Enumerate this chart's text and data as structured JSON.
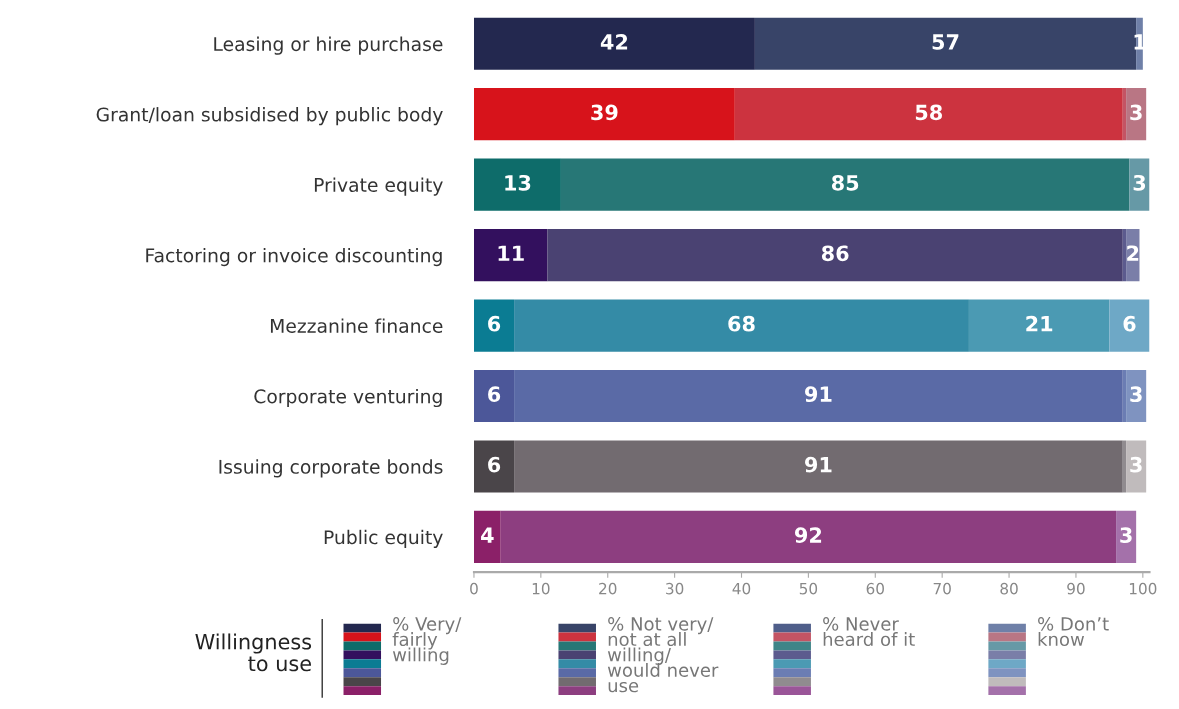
{
  "chart_data": {
    "type": "bar",
    "orientation": "horizontal",
    "stacked": true,
    "categories": [
      "Leasing or hire purchase",
      "Grant/loan subsidised by public body",
      "Private equity",
      "Factoring or invoice discounting",
      "Mezzanine finance",
      "Corporate venturing",
      "Issuing corporate bonds",
      "Public equity"
    ],
    "series": [
      {
        "name": "% Very/\nfairly\nwilling",
        "colors": [
          "#23284f",
          "#d7131b",
          "#0e6c6a",
          "#33105e",
          "#0b7c93",
          "#4c5799",
          "#4a4549",
          "#8b2068"
        ],
        "values": [
          42,
          39,
          13,
          11,
          6,
          6,
          6,
          4
        ],
        "value_labels": [
          "42",
          "39",
          "13",
          "11",
          "6",
          "6",
          "6",
          "4"
        ]
      },
      {
        "name": "% Not very/\nnot at all\nwilling/\nwould never\nuse",
        "colors": [
          "#384468",
          "#cc333f",
          "#277776",
          "#4a4272",
          "#348ba6",
          "#5a6aa6",
          "#726b70",
          "#8d3e80"
        ],
        "values": [
          57,
          58,
          85,
          86,
          68,
          91,
          91,
          92
        ],
        "value_labels": [
          "57",
          "58",
          "85",
          "86",
          "68",
          "91",
          "91",
          "92"
        ]
      },
      {
        "name": "% Never\nheard of it",
        "colors": [
          "#4f5e8a",
          "#c45464",
          "#3f8588",
          "#5c5b8e",
          "#4b9ab3",
          "#6b7db3",
          "#908b8f",
          "#9a5598"
        ],
        "values": [
          null,
          0.5,
          null,
          0.5,
          21,
          0.5,
          0.5,
          null
        ],
        "value_labels": [
          null,
          null,
          null,
          null,
          "21",
          null,
          null,
          null
        ]
      },
      {
        "name": "% Don’t\nknow",
        "colors": [
          "#6f80a8",
          "#b97684",
          "#6699a6",
          "#7a7ea8",
          "#6ea8c6",
          "#7f93c0",
          "#c0bbbc",
          "#a471aa"
        ],
        "values": [
          1,
          3,
          3,
          2,
          6,
          3,
          3,
          3
        ],
        "value_labels": [
          "1",
          "3",
          "3",
          "2",
          "6",
          "3",
          "3",
          "3"
        ]
      }
    ],
    "xlim": [
      0,
      101
    ],
    "xticks": [
      0,
      10,
      20,
      30,
      40,
      50,
      60,
      70,
      80,
      90,
      100
    ],
    "legend_title": "Willingness\nto use",
    "legend": "bottom",
    "grid": false
  }
}
